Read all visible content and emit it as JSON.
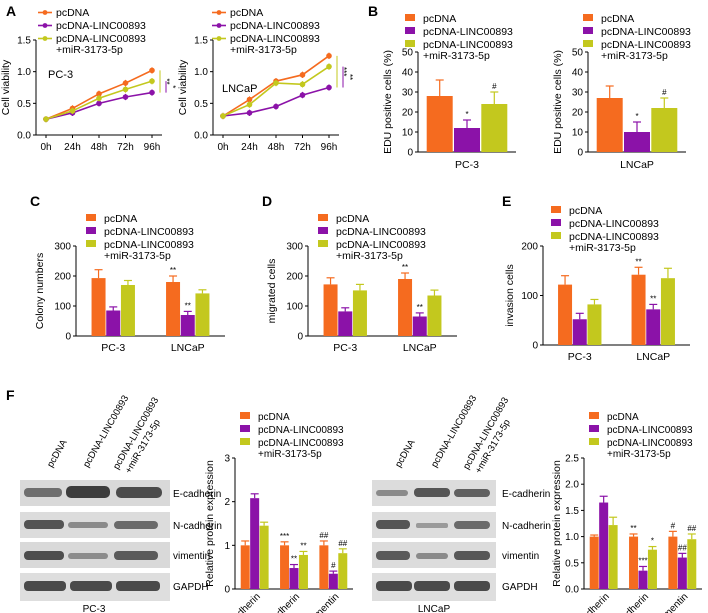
{
  "colors": {
    "orange": "#f56b1f",
    "purple": "#8b12a8",
    "olive": "#c3c81e",
    "axis": "#000000",
    "blot": "#595959"
  },
  "legend_labels": {
    "pcdna": "pcDNA",
    "linc": "pcDNA-LINC00893",
    "linc_mir": "pcDNA-LINC00893",
    "linc_mir2": "+miR-3173-5p"
  },
  "panel_letters": {
    "a": "A",
    "b": "B",
    "c": "C",
    "d": "D",
    "e": "E",
    "f": "F"
  },
  "chart_data": [
    {
      "id": "A1",
      "type": "line",
      "annotation": "PC-3",
      "xlabel": "",
      "ylabel": "Cell viability",
      "categories": [
        "0h",
        "24h",
        "48h",
        "72h",
        "96h"
      ],
      "ylim": [
        0,
        1.5
      ],
      "yticks": [
        "0.0",
        "0.5",
        "1.0",
        "1.5"
      ],
      "series": [
        {
          "name": "pcDNA",
          "values": [
            0.25,
            0.42,
            0.65,
            0.82,
            1.02
          ]
        },
        {
          "name": "pcDNA-LINC00893",
          "values": [
            0.25,
            0.35,
            0.5,
            0.6,
            0.67
          ]
        },
        {
          "name": "pcDNA-LINC00893 +miR-3173-5p",
          "values": [
            0.25,
            0.38,
            0.58,
            0.72,
            0.85
          ]
        }
      ],
      "sig": [
        "**",
        "*"
      ]
    },
    {
      "id": "A2",
      "type": "line",
      "annotation": "LNCaP",
      "xlabel": "",
      "ylabel": "Cell viability",
      "categories": [
        "0h",
        "24h",
        "48h",
        "72h",
        "96h"
      ],
      "ylim": [
        0,
        1.5
      ],
      "yticks": [
        "0.0",
        "0.5",
        "1.0",
        "1.5"
      ],
      "series": [
        {
          "name": "pcDNA",
          "values": [
            0.3,
            0.56,
            0.85,
            0.95,
            1.25
          ]
        },
        {
          "name": "pcDNA-LINC00893",
          "values": [
            0.3,
            0.35,
            0.45,
            0.63,
            0.75
          ]
        },
        {
          "name": "pcDNA-LINC00893 +miR-3173-5p",
          "values": [
            0.3,
            0.48,
            0.82,
            0.8,
            1.08
          ]
        }
      ],
      "sig": [
        "***",
        "**"
      ]
    },
    {
      "id": "B1",
      "type": "bar",
      "xlabel": "PC-3",
      "ylabel": "EDU positive cells (%)",
      "ylim": [
        0,
        50
      ],
      "yticks": [
        "0",
        "10",
        "20",
        "30",
        "40",
        "50"
      ],
      "series": [
        {
          "name": "pcDNA",
          "values": [
            28
          ]
        },
        {
          "name": "pcDNA-LINC00893",
          "values": [
            12
          ]
        },
        {
          "name": "pcDNA-LINC00893 +miR-3173-5p",
          "values": [
            24
          ]
        }
      ],
      "errors": [
        8,
        4,
        6
      ],
      "sig": [
        "",
        "*",
        "#"
      ]
    },
    {
      "id": "B2",
      "type": "bar",
      "xlabel": "LNCaP",
      "ylabel": "EDU positive cells (%)",
      "ylim": [
        0,
        50
      ],
      "yticks": [
        "0",
        "10",
        "20",
        "30",
        "40",
        "50"
      ],
      "series": [
        {
          "name": "pcDNA",
          "values": [
            27
          ]
        },
        {
          "name": "pcDNA-LINC00893",
          "values": [
            10
          ]
        },
        {
          "name": "pcDNA-LINC00893 +miR-3173-5p",
          "values": [
            22
          ]
        }
      ],
      "errors": [
        6,
        5,
        5
      ],
      "sig": [
        "",
        "*",
        "#"
      ]
    },
    {
      "id": "C",
      "type": "bar",
      "ylabel": "Colony numbers",
      "categories": [
        "PC-3",
        "LNCaP"
      ],
      "ylim": [
        0,
        300
      ],
      "yticks": [
        "0",
        "100",
        "200",
        "300"
      ],
      "series": [
        {
          "name": "pcDNA",
          "values": [
            193,
            180
          ]
        },
        {
          "name": "pcDNA-LINC00893",
          "values": [
            85,
            70
          ]
        },
        {
          "name": "pcDNA-LINC00893 +miR-3173-5p",
          "values": [
            170,
            142
          ]
        }
      ],
      "errors": [
        [
          28,
          20
        ],
        [
          12,
          12
        ],
        [
          15,
          12
        ]
      ],
      "sig": [
        [
          "",
          "**",
          "##"
        ],
        [
          "",
          "**",
          "##"
        ]
      ]
    },
    {
      "id": "D",
      "type": "bar",
      "ylabel": "migrated cells",
      "categories": [
        "PC-3",
        "LNCaP"
      ],
      "ylim": [
        0,
        300
      ],
      "yticks": [
        "0",
        "100",
        "200",
        "300"
      ],
      "series": [
        {
          "name": "pcDNA",
          "values": [
            172,
            190
          ]
        },
        {
          "name": "pcDNA-LINC00893",
          "values": [
            82,
            65
          ]
        },
        {
          "name": "pcDNA-LINC00893 +miR-3173-5p",
          "values": [
            152,
            135
          ]
        }
      ],
      "errors": [
        [
          22,
          20
        ],
        [
          12,
          12
        ],
        [
          20,
          18
        ]
      ],
      "sig": [
        [
          "",
          "**",
          "##"
        ],
        [
          "",
          "**",
          "#"
        ]
      ]
    },
    {
      "id": "E",
      "type": "bar",
      "ylabel": "invasion cells",
      "categories": [
        "PC-3",
        "LNCaP"
      ],
      "ylim": [
        0,
        200
      ],
      "yticks": [
        "0",
        "100",
        "200"
      ],
      "series": [
        {
          "name": "pcDNA",
          "values": [
            122,
            142
          ]
        },
        {
          "name": "pcDNA-LINC00893",
          "values": [
            52,
            72
          ]
        },
        {
          "name": "pcDNA-LINC00893 +miR-3173-5p",
          "values": [
            82,
            135
          ]
        }
      ],
      "errors": [
        [
          18,
          15
        ],
        [
          12,
          10
        ],
        [
          10,
          20
        ]
      ],
      "sig": [
        [
          "",
          "**",
          "#"
        ],
        [
          "",
          "**",
          "#"
        ]
      ]
    },
    {
      "id": "F1",
      "type": "bar",
      "ylabel": "Relative protein expression",
      "categories": [
        "E-cadherin",
        "N-cadherin",
        "vimentin"
      ],
      "ylim": [
        0,
        3
      ],
      "yticks": [
        "0",
        "1",
        "2",
        "3"
      ],
      "series": [
        {
          "name": "pcDNA",
          "values": [
            1.0,
            1.0,
            1.0
          ]
        },
        {
          "name": "pcDNA-LINC00893",
          "values": [
            2.08,
            0.48,
            0.35
          ]
        },
        {
          "name": "pcDNA-LINC00893 +miR-3173-5p",
          "values": [
            1.45,
            0.78,
            0.82
          ]
        }
      ],
      "errors": [
        [
          0.1,
          0.08,
          0.1
        ],
        [
          0.1,
          0.08,
          0.06
        ],
        [
          0.08,
          0.08,
          0.1
        ]
      ],
      "sig": [
        [
          "",
          "***",
          "##"
        ],
        [
          "",
          "**",
          "#"
        ],
        [
          "",
          "**",
          "##"
        ]
      ]
    },
    {
      "id": "F2",
      "type": "bar",
      "ylabel": "Relative protein expression",
      "categories": [
        "E-cadherin",
        "N-cadherin",
        "vimentin"
      ],
      "ylim": [
        0,
        2.5
      ],
      "yticks": [
        "0.0",
        "0.5",
        "1.0",
        "1.5",
        "2.0",
        "2.5"
      ],
      "series": [
        {
          "name": "pcDNA",
          "values": [
            1.0,
            1.0,
            1.0
          ]
        },
        {
          "name": "pcDNA-LINC00893",
          "values": [
            1.65,
            0.35,
            0.6
          ]
        },
        {
          "name": "pcDNA-LINC00893 +miR-3173-5p",
          "values": [
            1.22,
            0.75,
            0.95
          ]
        }
      ],
      "errors": [
        [
          0.03,
          0.05,
          0.1
        ],
        [
          0.12,
          0.08,
          0.08
        ],
        [
          0.15,
          0.06,
          0.1
        ]
      ],
      "sig": [
        [
          "",
          "**",
          "#"
        ],
        [
          "",
          "***",
          "##"
        ],
        [
          "",
          "*",
          "##"
        ]
      ]
    }
  ],
  "blots": {
    "pc3": {
      "lanes": [
        "pcDNA",
        "pcDNA-LINC00893",
        "pcDNA-LINC00893",
        "+miR-3173-5p"
      ],
      "rows": [
        "E-cadherin",
        "N-cadherin",
        "vimentin",
        "GAPDH"
      ],
      "caption": "PC-3"
    },
    "lncap": {
      "lanes": [
        "pcDNA",
        "pcDNA-LINC00893",
        "pcDNA-LINC00893",
        "+miR-3173-5p"
      ],
      "rows": [
        "E-cadherin",
        "N-cadherin",
        "vimentin",
        "GAPDH"
      ],
      "caption": "LNCaP"
    }
  }
}
